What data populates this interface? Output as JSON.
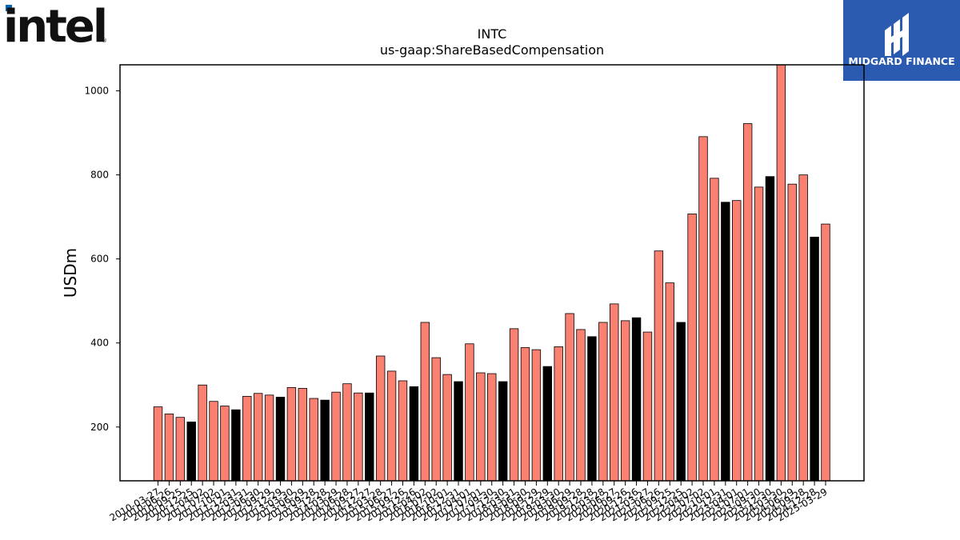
{
  "logos": {
    "intel": {
      "text": "intel",
      "color": "#111111",
      "accent": "#0068b5"
    },
    "midgard": {
      "text": "MIDGARD FINANCE",
      "background": "#2b5bb0"
    }
  },
  "chart_data": {
    "type": "bar",
    "title": "INTC",
    "subtitle": "us-gaap:ShareBasedCompensation",
    "xlabel": "",
    "ylabel": "USDm",
    "ylim": [
      72,
      1062
    ],
    "yticks": [
      200,
      400,
      600,
      800,
      1000
    ],
    "grid": false,
    "bar_colors": {
      "quarter": "#fa8072",
      "fiscal_year_end": "#000000"
    },
    "tick_labels": [
      "2010-03-27",
      "2010-06-26",
      "2010-09-25",
      "2010-12-25",
      "2011-04-02",
      "2011-07-02",
      "2011-10-01",
      "2011-12-31",
      "2012-03-31",
      "2012-06-30",
      "2012-09-29",
      "2012-12-29",
      "2013-03-30",
      "2013-06-29",
      "2013-09-28",
      "2013-12-28",
      "2014-03-29",
      "2014-06-28",
      "2014-09-27",
      "2014-12-27",
      "2015-03-28",
      "2015-06-27",
      "2015-09-26",
      "2015-12-26",
      "2016-04-02",
      "2016-07-02",
      "2016-10-01",
      "2016-12-31",
      "2017-04-01",
      "2017-07-01",
      "2017-09-30",
      "2017-12-30",
      "2018-03-31",
      "2018-06-30",
      "2018-09-29",
      "2018-12-29",
      "2019-03-30",
      "2019-06-29",
      "2019-09-28",
      "2019-12-28",
      "2020-03-28",
      "2020-06-27",
      "2020-09-26",
      "2020-12-26",
      "2021-03-27",
      "2021-06-26",
      "2021-09-25",
      "2021-12-25",
      "2022-04-02",
      "2022-07-02",
      "2022-10-01",
      "2022-12-31",
      "2023-04-01",
      "2023-07-01",
      "2023-09-30",
      "2023-12-30",
      "2024-03-30",
      "2024-06-29",
      "2024-09-28",
      "2024-12-28",
      "2025-03-29"
    ],
    "categories": [
      "2010-03-27",
      "2010-06-26",
      "2010-09-25",
      "2010-12-25",
      "2011-04-02",
      "2011-07-02",
      "2011-10-01",
      "2011-12-31",
      "2012-03-31",
      "2012-06-30",
      "2012-09-29",
      "2012-12-29",
      "2013-03-30",
      "2013-06-29",
      "2013-09-28",
      "2013-12-28",
      "2014-03-29",
      "2014-06-28",
      "2014-09-27",
      "2014-12-27",
      "2015-03-28",
      "2015-06-27",
      "2015-09-26",
      "2015-12-26",
      "2016-04-02",
      "2016-07-02",
      "2016-10-01",
      "2016-12-31",
      "2017-04-01",
      "2017-07-01",
      "2017-09-30",
      "2017-12-30",
      "2018-03-31",
      "2018-06-30",
      "2018-09-29",
      "2018-12-29",
      "2019-03-30",
      "2019-06-29",
      "2019-09-28",
      "2019-12-28",
      "2020-03-28",
      "2020-06-27",
      "2020-09-26",
      "2020-12-26",
      "2021-03-27",
      "2021-06-26",
      "2021-09-25",
      "2021-12-25",
      "2022-04-02",
      "2022-07-02",
      "2022-10-01",
      "2022-12-31",
      "2023-04-01",
      "2023-07-01",
      "2023-09-30",
      "2023-12-30",
      "2024-03-30",
      "2024-06-29",
      "2024-09-28",
      "2024-12-28",
      "2025-03-29"
    ],
    "values": [
      248,
      231,
      223,
      212,
      300,
      261,
      250,
      241,
      273,
      280,
      276,
      271,
      294,
      292,
      268,
      264,
      283,
      303,
      281,
      281,
      369,
      333,
      310,
      296,
      449,
      365,
      325,
      308,
      398,
      329,
      327,
      308,
      434,
      389,
      384,
      344,
      391,
      470,
      432,
      415,
      449,
      493,
      453,
      460,
      426,
      619,
      543,
      449,
      707,
      891,
      792,
      735,
      739,
      922,
      771,
      796,
      1068,
      778,
      800,
      652,
      683
    ],
    "fiscal_year_end": [
      false,
      false,
      false,
      true,
      false,
      false,
      false,
      true,
      false,
      false,
      false,
      true,
      false,
      false,
      false,
      true,
      false,
      false,
      false,
      true,
      false,
      false,
      false,
      true,
      false,
      false,
      false,
      true,
      false,
      false,
      false,
      true,
      false,
      false,
      false,
      true,
      false,
      false,
      false,
      true,
      false,
      false,
      false,
      true,
      false,
      false,
      false,
      true,
      false,
      false,
      false,
      true,
      false,
      false,
      false,
      true,
      false,
      false,
      false,
      true,
      false
    ]
  }
}
